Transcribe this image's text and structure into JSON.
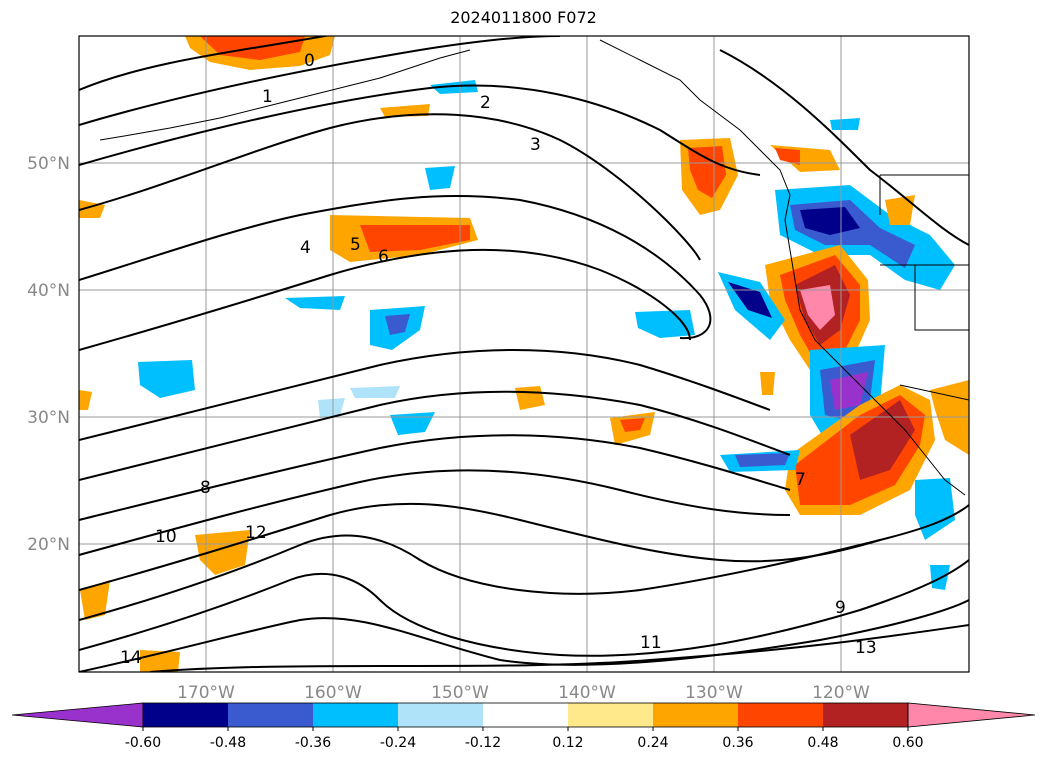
{
  "title": "2024011800 F072",
  "lat_labels": [
    "50°N",
    "40°N",
    "30°N",
    "20°N"
  ],
  "lon_labels": [
    "170°W",
    "160°W",
    "150°W",
    "140°W",
    "130°W",
    "120°W"
  ],
  "colorbar": {
    "ticks": [
      "-0.60",
      "-0.48",
      "-0.36",
      "-0.24",
      "-0.12",
      "0.12",
      "0.24",
      "0.36",
      "0.48",
      "0.60"
    ],
    "colors": [
      "#9932cc",
      "#00008b",
      "#3a5bd0",
      "#00bfff",
      "#aee3fa",
      "#ffffff",
      "#ffe98a",
      "#ffa500",
      "#ff4500",
      "#b22222",
      "#ff88aa"
    ]
  },
  "contour_labels": [
    "0",
    "1",
    "2",
    "3",
    "4",
    "5",
    "6",
    "7",
    "8",
    "9",
    "10",
    "11",
    "12",
    "13",
    "14"
  ]
}
